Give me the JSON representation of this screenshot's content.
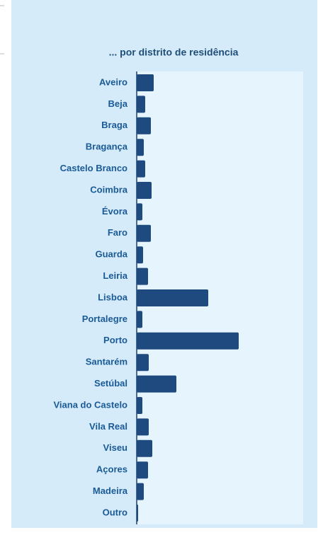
{
  "chart_data": {
    "type": "bar",
    "orientation": "horizontal",
    "title": "... por distrito de residência",
    "categories": [
      "Aveiro",
      "Beja",
      "Braga",
      "Bragança",
      "Castelo Branco",
      "Coimbra",
      "Évora",
      "Faro",
      "Guarda",
      "Leiria",
      "Lisboa",
      "Portalegre",
      "Porto",
      "Santarém",
      "Setúbal",
      "Viana do Castelo",
      "Vila Real",
      "Viseu",
      "Açores",
      "Madeira",
      "Outro"
    ],
    "values": [
      24,
      12,
      20,
      10,
      12,
      21,
      8,
      20,
      9,
      16,
      101,
      8,
      144,
      17,
      56,
      8,
      17,
      22,
      16,
      10,
      2
    ],
    "color": "#1f4a7f"
  }
}
